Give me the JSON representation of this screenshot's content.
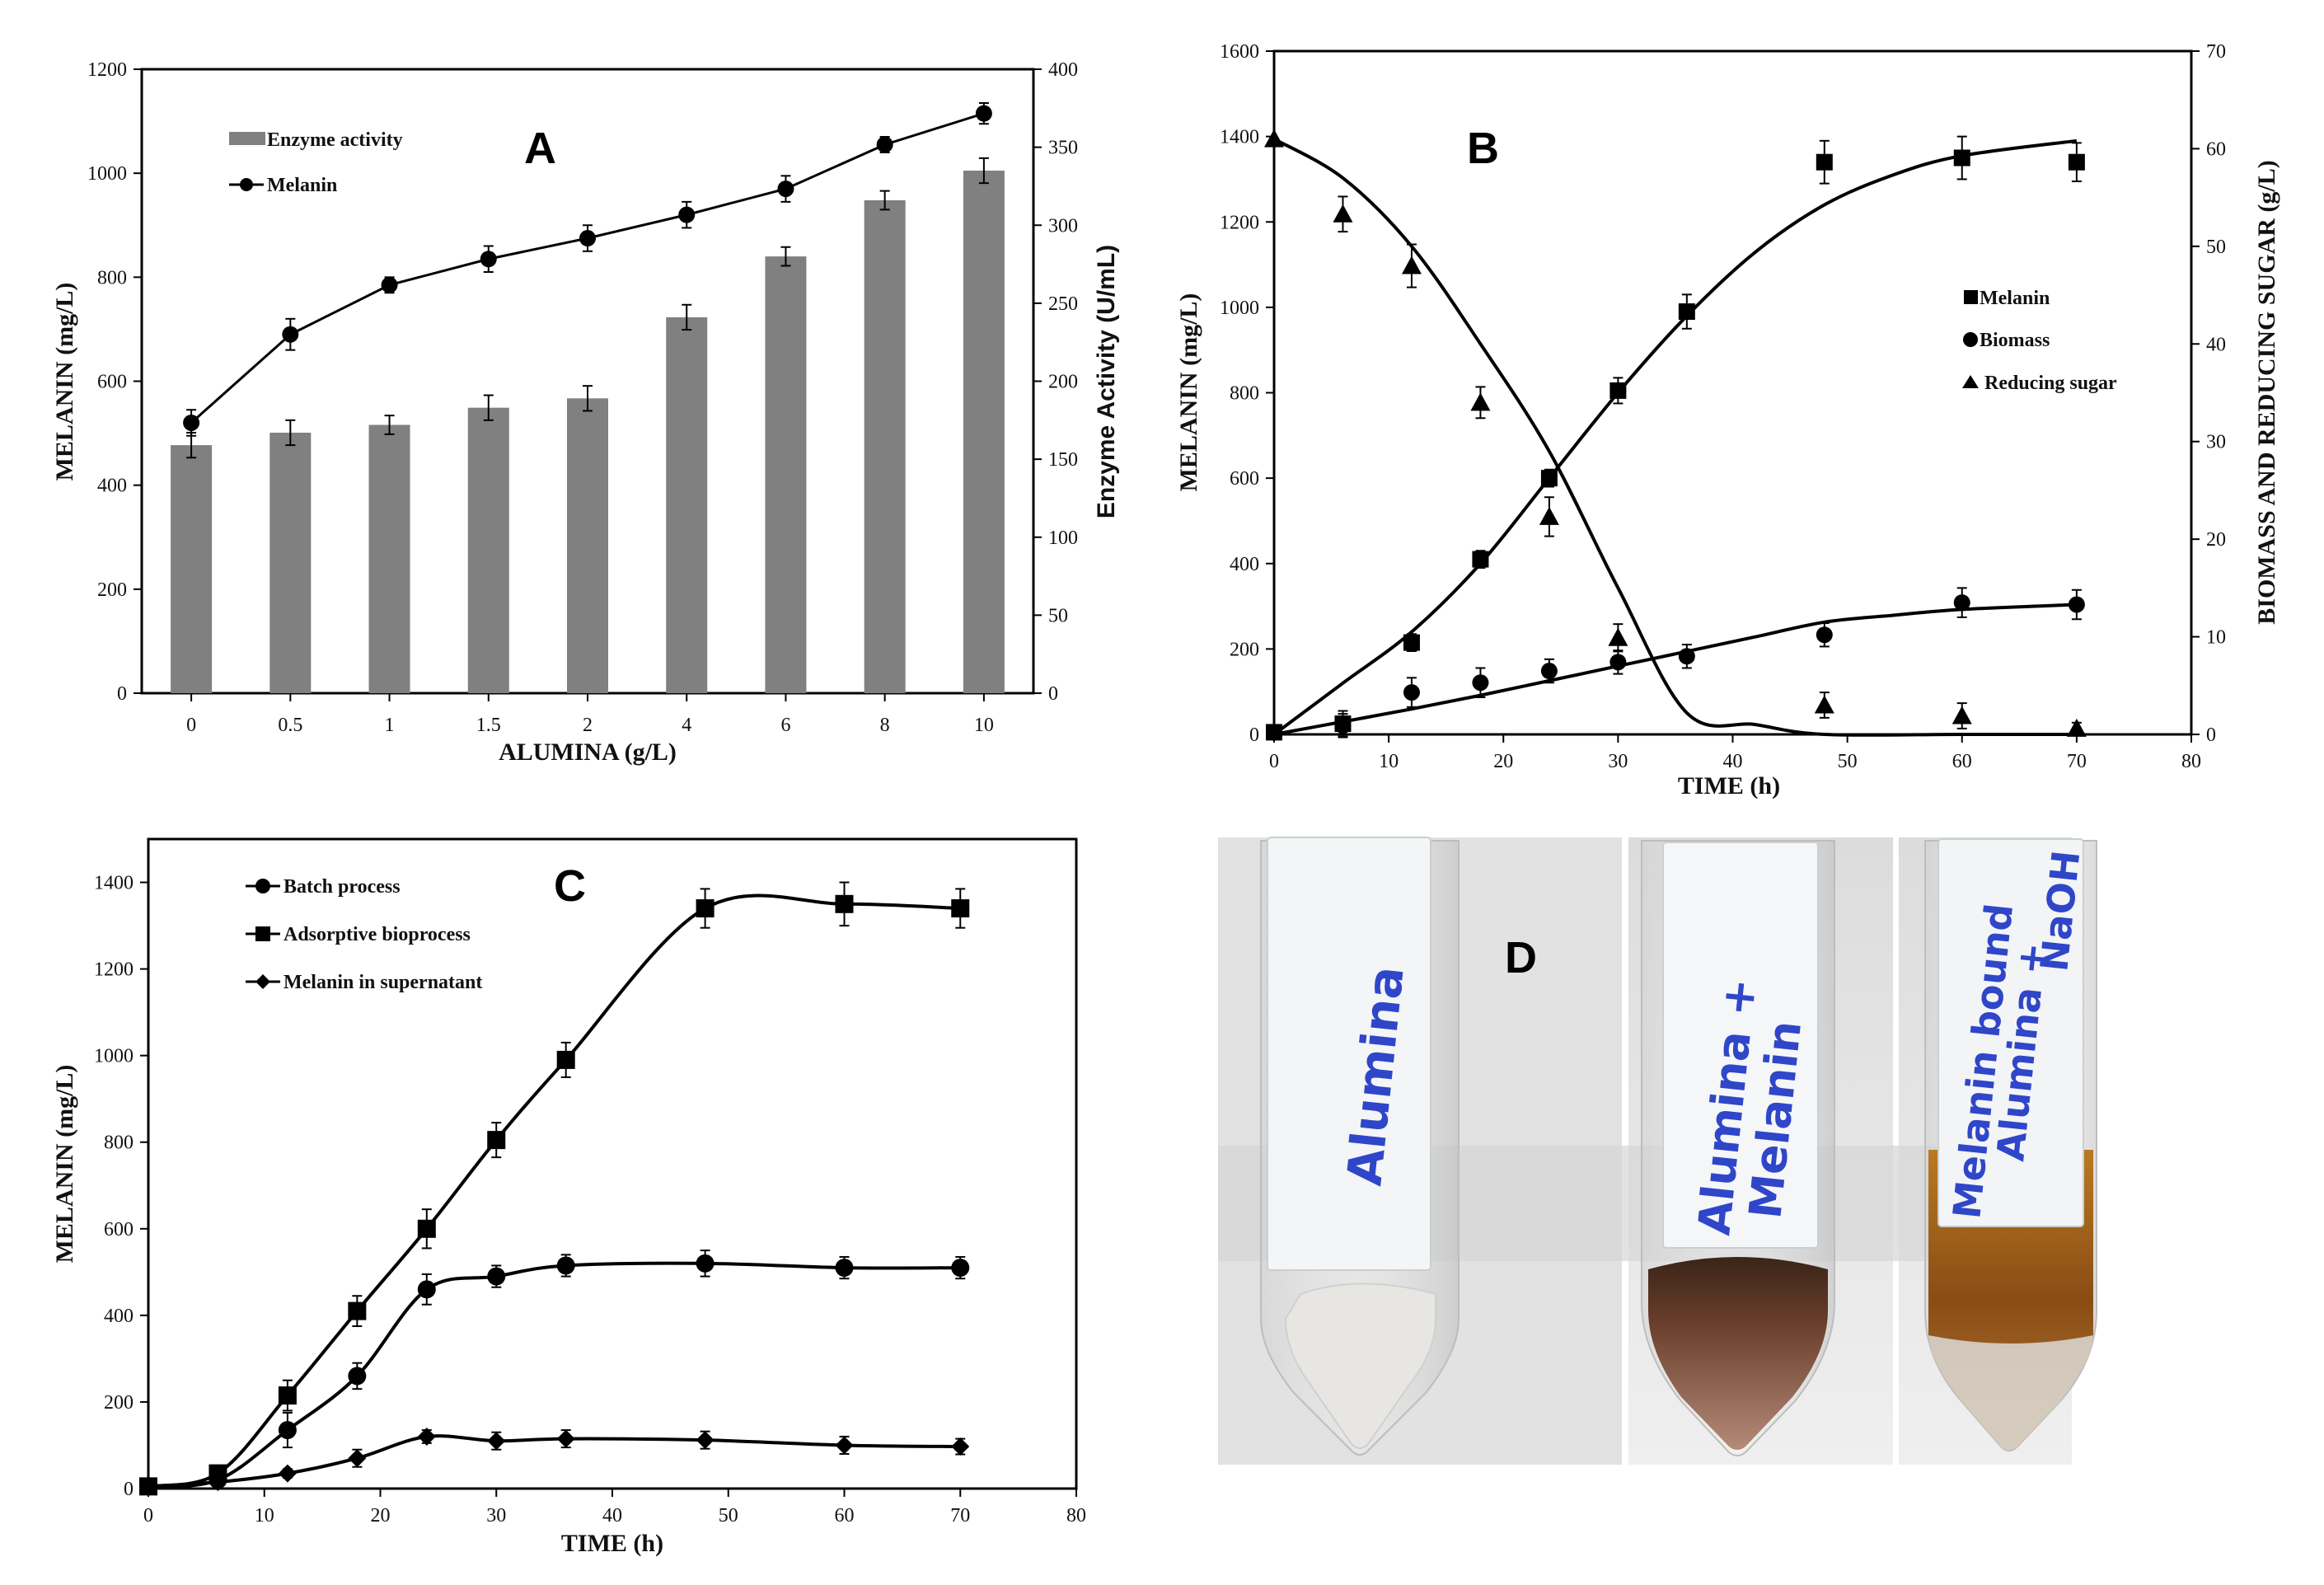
{
  "chart_data": [
    {
      "panel": "A",
      "type": "bar",
      "xlabel": "ALUMINA (g/L)",
      "ylabel": "MELANIN (mg/L)",
      "y2label": "Enzyme Activity (U/mL)",
      "categories": [
        "0",
        "0.5",
        "1",
        "1.5",
        "2",
        "4",
        "6",
        "8",
        "10"
      ],
      "ylim": [
        0,
        1200
      ],
      "y2lim": [
        0,
        400
      ],
      "yticks": [
        "0",
        "200",
        "400",
        "600",
        "800",
        "1000",
        "1200"
      ],
      "y2ticks": [
        "0",
        "50",
        "100",
        "150",
        "200",
        "250",
        "300",
        "350",
        "400"
      ],
      "legend_position": "top-left",
      "series": [
        {
          "name": "Enzyme activity",
          "kind": "bar",
          "axis": "right",
          "values": [
            159,
            167,
            172,
            183,
            189,
            241,
            280,
            316,
            335
          ],
          "error": [
            8,
            8,
            6,
            8,
            8,
            8,
            6,
            6,
            8
          ],
          "color": "#808080"
        },
        {
          "name": "Melanin",
          "kind": "line-marker",
          "marker": "circle",
          "axis": "left",
          "values": [
            520,
            690,
            785,
            835,
            875,
            920,
            970,
            1055,
            1115
          ],
          "error": [
            25,
            30,
            15,
            25,
            25,
            25,
            25,
            15,
            20
          ]
        }
      ]
    },
    {
      "panel": "B",
      "type": "scatter",
      "xlabel": "TIME (h)",
      "ylabel": "MELANIN (mg/L)",
      "y2label": "BIOMASS AND REDUCING SUGAR (g/L)",
      "xlim": [
        0,
        80
      ],
      "ylim": [
        0,
        1600
      ],
      "y2lim": [
        0,
        70
      ],
      "xticks": [
        "0",
        "10",
        "20",
        "30",
        "40",
        "50",
        "60",
        "70",
        "80"
      ],
      "yticks": [
        "0",
        "200",
        "400",
        "600",
        "800",
        "1000",
        "1200",
        "1400",
        "1600"
      ],
      "y2ticks": [
        "0",
        "10",
        "20",
        "30",
        "40",
        "50",
        "60",
        "70"
      ],
      "legend_position": "right",
      "series": [
        {
          "name": "Melanin",
          "marker": "square",
          "axis": "left",
          "x": [
            0,
            6,
            12,
            18,
            24,
            30,
            36,
            48,
            60,
            70
          ],
          "y": [
            5,
            25,
            215,
            410,
            600,
            805,
            990,
            1340,
            1350,
            1340
          ],
          "error": [
            0,
            30,
            20,
            20,
            20,
            30,
            40,
            50,
            50,
            45
          ]
        },
        {
          "name": "Biomass",
          "marker": "circle",
          "axis": "right",
          "x": [
            0,
            6,
            12,
            18,
            24,
            30,
            36,
            48,
            60,
            70
          ],
          "y": [
            0.2,
            0.9,
            4.3,
            5.3,
            6.5,
            7.4,
            8.0,
            10.2,
            13.5,
            13.3
          ],
          "error": [
            0,
            1.2,
            1.5,
            1.5,
            1.2,
            1.2,
            1.2,
            1.2,
            1.5,
            1.5
          ]
        },
        {
          "name": "Reducing sugar",
          "marker": "triangle",
          "axis": "right",
          "x": [
            0,
            6,
            12,
            18,
            24,
            30,
            48,
            60,
            70
          ],
          "y": [
            61,
            53.3,
            48,
            34,
            22.3,
            9.9,
            3.0,
            1.9,
            0.6
          ],
          "error": [
            0,
            1.8,
            2.2,
            1.6,
            2.0,
            1.4,
            1.3,
            1.3,
            0.6
          ]
        }
      ],
      "fit_lines": [
        {
          "of": "Melanin",
          "axis": "left",
          "x": [
            0,
            6,
            12,
            18,
            24,
            30,
            36,
            42,
            48,
            54,
            60,
            70
          ],
          "y": [
            0,
            120,
            240,
            400,
            600,
            800,
            980,
            1130,
            1240,
            1310,
            1355,
            1390
          ]
        },
        {
          "of": "Biomass",
          "axis": "right",
          "x": [
            0,
            6,
            12,
            18,
            24,
            30,
            36,
            42,
            48,
            54,
            60,
            70
          ],
          "y": [
            0,
            1.3,
            2.6,
            4.0,
            5.5,
            7.0,
            8.5,
            10.0,
            11.5,
            12.2,
            12.8,
            13.3
          ]
        },
        {
          "of": "Reducing sugar",
          "axis": "right",
          "x": [
            0,
            6,
            12,
            18,
            24,
            30,
            36,
            42,
            48,
            60,
            70
          ],
          "y": [
            61,
            57,
            50,
            40,
            29,
            15,
            2.2,
            1.0,
            0,
            0,
            0
          ]
        }
      ]
    },
    {
      "panel": "C",
      "type": "line",
      "xlabel": "TIME (h)",
      "ylabel": "MELANIN (mg/L)",
      "xlim": [
        0,
        80
      ],
      "ylim": [
        0,
        1500
      ],
      "xticks": [
        "0",
        "10",
        "20",
        "30",
        "40",
        "50",
        "60",
        "70",
        "80"
      ],
      "yticks": [
        "0",
        "200",
        "400",
        "600",
        "800",
        "1000",
        "1200",
        "1400"
      ],
      "legend_position": "top-left",
      "series": [
        {
          "name": "Batch process",
          "marker": "circle",
          "x": [
            0,
            6,
            12,
            18,
            24,
            30,
            36,
            48,
            60,
            70
          ],
          "y": [
            5,
            20,
            135,
            260,
            460,
            490,
            515,
            520,
            510,
            510
          ],
          "error": [
            0,
            10,
            40,
            30,
            35,
            25,
            25,
            30,
            25,
            25
          ]
        },
        {
          "name": "Adsorptive bioprocess",
          "marker": "square",
          "x": [
            0,
            6,
            12,
            18,
            24,
            30,
            36,
            48,
            60,
            70
          ],
          "y": [
            5,
            35,
            215,
            410,
            600,
            805,
            990,
            1340,
            1350,
            1340
          ],
          "error": [
            0,
            15,
            35,
            35,
            45,
            40,
            40,
            45,
            50,
            45
          ]
        },
        {
          "name": "Melanin in supernatant",
          "marker": "diamond",
          "x": [
            0,
            6,
            12,
            18,
            24,
            30,
            36,
            48,
            60,
            70
          ],
          "y": [
            5,
            15,
            35,
            70,
            120,
            110,
            115,
            112,
            100,
            97
          ],
          "error": [
            0,
            5,
            10,
            20,
            15,
            20,
            20,
            20,
            20,
            18
          ]
        }
      ]
    }
  ],
  "panels": {
    "A": {
      "letter": "A"
    },
    "B": {
      "letter": "B"
    },
    "C": {
      "letter": "C"
    },
    "D": {
      "letter": "D"
    }
  },
  "photo": {
    "tubes": [
      {
        "label_lines": [
          "Alumina"
        ]
      },
      {
        "label_lines": [
          "Alumina +",
          "Melanin"
        ]
      },
      {
        "label_lines": [
          "Melanin bound",
          "Alumina +",
          "NaOH"
        ]
      }
    ]
  }
}
